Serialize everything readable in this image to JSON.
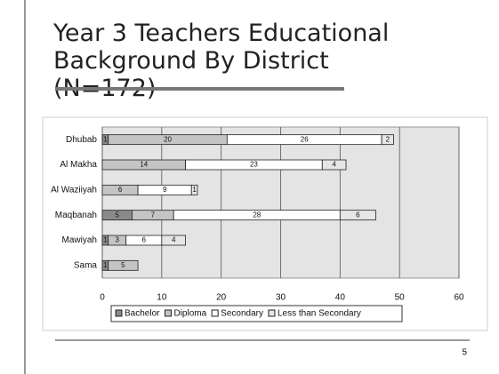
{
  "title": "Year 3 Teachers Educational Background By District (N=172)",
  "page_number": "5",
  "chart_data": {
    "type": "bar",
    "orientation": "horizontal",
    "stacked": true,
    "categories": [
      "Dhubab",
      "Al Makha",
      "Al Waziiyah",
      "Maqbanah",
      "Mawiyah",
      "Sama"
    ],
    "series": [
      {
        "name": "Bachelor",
        "color": "#8a8a8a",
        "values": [
          1,
          0,
          0,
          5,
          1,
          1
        ]
      },
      {
        "name": "Diploma",
        "color": "#c4c4c4",
        "values": [
          20,
          14,
          6,
          7,
          3,
          5
        ]
      },
      {
        "name": "Secondary",
        "color": "#ffffff",
        "values": [
          26,
          23,
          9,
          28,
          6,
          0
        ]
      },
      {
        "name": "Less than Secondary",
        "color": "#e6e6e6",
        "values": [
          2,
          4,
          1,
          6,
          4,
          0
        ]
      }
    ],
    "xlim": [
      0,
      60
    ],
    "xticks": [
      0,
      10,
      20,
      30,
      40,
      50,
      60
    ],
    "grid": true,
    "legend": "bottom"
  }
}
